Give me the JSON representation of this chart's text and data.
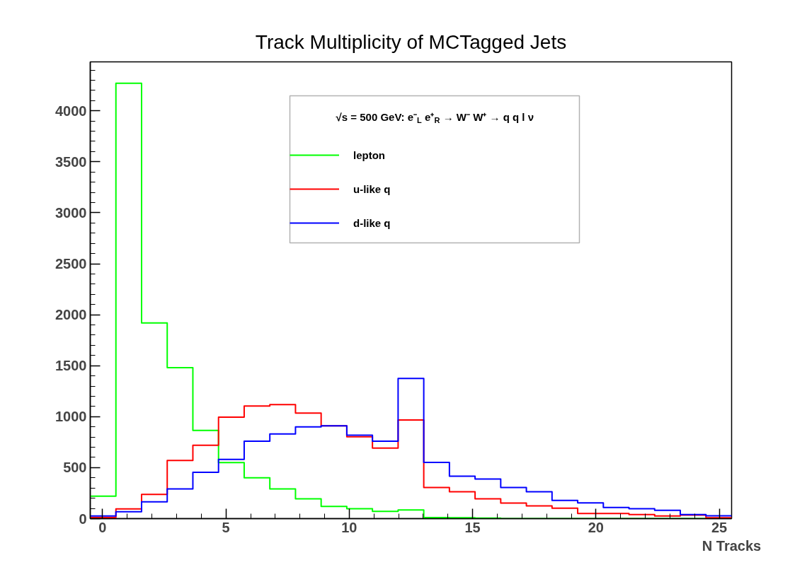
{
  "chart_data": {
    "type": "histogram",
    "title": "Track Multiplicity of MCTagged Jets",
    "xlabel": "N Tracks",
    "legend_title": "√s = 500 GeV: e⁻$_{L}$ e⁺$_{R}$ → W⁻ W⁺ → q q l ν",
    "bins": [
      -0.5,
      0.54,
      1.58,
      2.62,
      3.66,
      4.7,
      5.74,
      6.78,
      7.82,
      8.86,
      9.9,
      10.94,
      11.98,
      13.02,
      14.06,
      15.1,
      16.14,
      17.18,
      18.22,
      19.26,
      20.3,
      21.34,
      22.38,
      23.42,
      24.46,
      25.5
    ],
    "series": [
      {
        "name": "lepton",
        "color": "#00ff00",
        "values": [
          220,
          4270,
          1920,
          1480,
          865,
          550,
          400,
          291,
          194,
          120,
          97,
          71,
          85,
          10,
          8,
          5,
          0,
          0,
          0,
          0,
          0,
          0,
          0,
          0,
          0
        ]
      },
      {
        "name": "u-like q",
        "color": "#ff0000",
        "values": [
          10,
          95,
          238,
          570,
          719,
          996,
          1105,
          1118,
          1035,
          910,
          802,
          691,
          968,
          305,
          263,
          194,
          152,
          125,
          102,
          51,
          51,
          40,
          26,
          35,
          9
        ]
      },
      {
        "name": "d-like q",
        "color": "#0000ff",
        "values": [
          26,
          67,
          164,
          291,
          455,
          580,
          760,
          830,
          899,
          910,
          818,
          760,
          1375,
          552,
          416,
          388,
          305,
          263,
          178,
          155,
          109,
          97,
          81,
          40,
          28
        ]
      }
    ],
    "xlim": [
      -0.5,
      25.5
    ],
    "ylim": [
      0,
      4480
    ],
    "xticks": [
      0,
      5,
      10,
      15,
      20,
      25
    ],
    "yticks": [
      0,
      500,
      1000,
      1500,
      2000,
      2500,
      3000,
      3500,
      4000
    ],
    "grid": false,
    "legend": "top"
  }
}
